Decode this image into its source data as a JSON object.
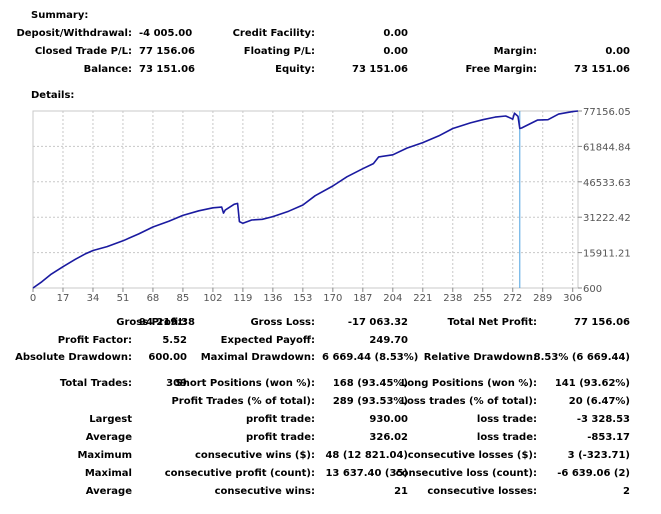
{
  "summary": {
    "title": "Summary:",
    "deposit_label": "Deposit/Withdrawal:",
    "deposit_value": "-4 005.00",
    "credit_label": "Credit Facility:",
    "credit_value": "0.00",
    "closed_pl_label": "Closed Trade P/L:",
    "closed_pl_value": "77 156.06",
    "floating_pl_label": "Floating P/L:",
    "floating_pl_value": "0.00",
    "margin_label": "Margin:",
    "margin_value": "0.00",
    "balance_label": "Balance:",
    "balance_value": "73 151.06",
    "equity_label": "Equity:",
    "equity_value": "73 151.06",
    "free_margin_label": "Free Margin:",
    "free_margin_value": "73 151.06"
  },
  "details_title": "Details:",
  "chart_data": {
    "type": "line",
    "xlabel": "",
    "ylabel": "",
    "y_ticks": [
      "77156.05",
      "61844.84",
      "46533.63",
      "31222.42",
      "15911.21",
      "600"
    ],
    "y_tick_values": [
      77156.05,
      61844.84,
      46533.63,
      31222.42,
      15911.21,
      600
    ],
    "x_ticks": [
      "0",
      "17",
      "34",
      "51",
      "68",
      "85",
      "102",
      "119",
      "136",
      "153",
      "170",
      "187",
      "204",
      "221",
      "238",
      "255",
      "272",
      "289",
      "306"
    ],
    "x_tick_values": [
      0,
      17,
      34,
      51,
      68,
      85,
      102,
      119,
      136,
      153,
      170,
      187,
      204,
      221,
      238,
      255,
      272,
      289,
      306
    ],
    "xlim": [
      0,
      309
    ],
    "ylim": [
      600,
      77156.05
    ],
    "grid": true,
    "series_color": "#1a1aa0",
    "marker_color": "#4aa0e0",
    "marker_x": 276,
    "series": [
      {
        "x": [
          0,
          5,
          10,
          17,
          24,
          30,
          34,
          42,
          51,
          60,
          68,
          77,
          85,
          94,
          102,
          107,
          108,
          109,
          114,
          116,
          117,
          119,
          124,
          130,
          136,
          145,
          153,
          160,
          170,
          178,
          187,
          193,
          196,
          204,
          212,
          221,
          230,
          238,
          248,
          255,
          262,
          268,
          271,
          272,
          273,
          275,
          276,
          277,
          281,
          286,
          292,
          298,
          306,
          309
        ],
        "values": [
          600,
          3300,
          6400,
          9800,
          13000,
          15500,
          16800,
          18500,
          21000,
          24000,
          27000,
          29500,
          32000,
          34000,
          35300,
          35600,
          33000,
          34300,
          36800,
          37200,
          29300,
          28600,
          30000,
          30300,
          31500,
          33800,
          36500,
          40500,
          44700,
          48700,
          52200,
          54400,
          57300,
          58200,
          61100,
          63500,
          66400,
          69600,
          72000,
          73400,
          74500,
          75000,
          74000,
          73600,
          76200,
          74800,
          69600,
          69800,
          71300,
          73200,
          73400,
          75800,
          76900,
          77156
        ]
      }
    ]
  },
  "stats": {
    "gross_profit_label": "Gross Profit:",
    "gross_profit_value": "94 219.38",
    "gross_loss_label": "Gross Loss:",
    "gross_loss_value": "-17 063.32",
    "total_net_profit_label": "Total Net Profit:",
    "total_net_profit_value": "77 156.06",
    "profit_factor_label": "Profit Factor:",
    "profit_factor_value": "5.52",
    "expected_payoff_label": "Expected Payoff:",
    "expected_payoff_value": "249.70",
    "abs_drawdown_label": "Absolute Drawdown:",
    "abs_drawdown_value": "600.00",
    "max_drawdown_label": "Maximal Drawdown:",
    "max_drawdown_value": "6 669.44 (8.53%)",
    "rel_drawdown_label": "Relative Drawdown:",
    "rel_drawdown_value": "8.53% (6 669.44)",
    "total_trades_label": "Total Trades:",
    "total_trades_value": "309",
    "short_pos_label": "Short Positions (won %):",
    "short_pos_value": "168 (93.45%)",
    "long_pos_label": "Long Positions (won %):",
    "long_pos_value": "141 (93.62%)",
    "profit_trades_label": "Profit Trades (% of total):",
    "profit_trades_value": "289 (93.53%)",
    "loss_trades_label": "Loss trades (% of total):",
    "loss_trades_value": "20 (6.47%)",
    "largest_label": "Largest",
    "largest_profit_label": "profit trade:",
    "largest_profit_value": "930.00",
    "largest_loss_label": "loss trade:",
    "largest_loss_value": "-3 328.53",
    "average_label": "Average",
    "average_profit_label": "profit trade:",
    "average_profit_value": "326.02",
    "average_loss_label": "loss trade:",
    "average_loss_value": "-853.17",
    "maximum_label": "Maximum",
    "max_cons_wins_label": "consecutive wins ($):",
    "max_cons_wins_value": "48 (12 821.04)",
    "max_cons_losses_label": "consecutive losses ($):",
    "max_cons_losses_value": "3 (-323.71)",
    "maximal_label": "Maximal",
    "maximal_cons_profit_label": "consecutive profit (count):",
    "maximal_cons_profit_value": "13 637.40 (35)",
    "maximal_cons_loss_label": "consecutive loss (count):",
    "maximal_cons_loss_value": "-6 639.06 (2)",
    "avg2_label": "Average",
    "avg_cons_wins_label": "consecutive wins:",
    "avg_cons_wins_value": "21",
    "avg_cons_losses_label": "consecutive losses:",
    "avg_cons_losses_value": "2"
  }
}
